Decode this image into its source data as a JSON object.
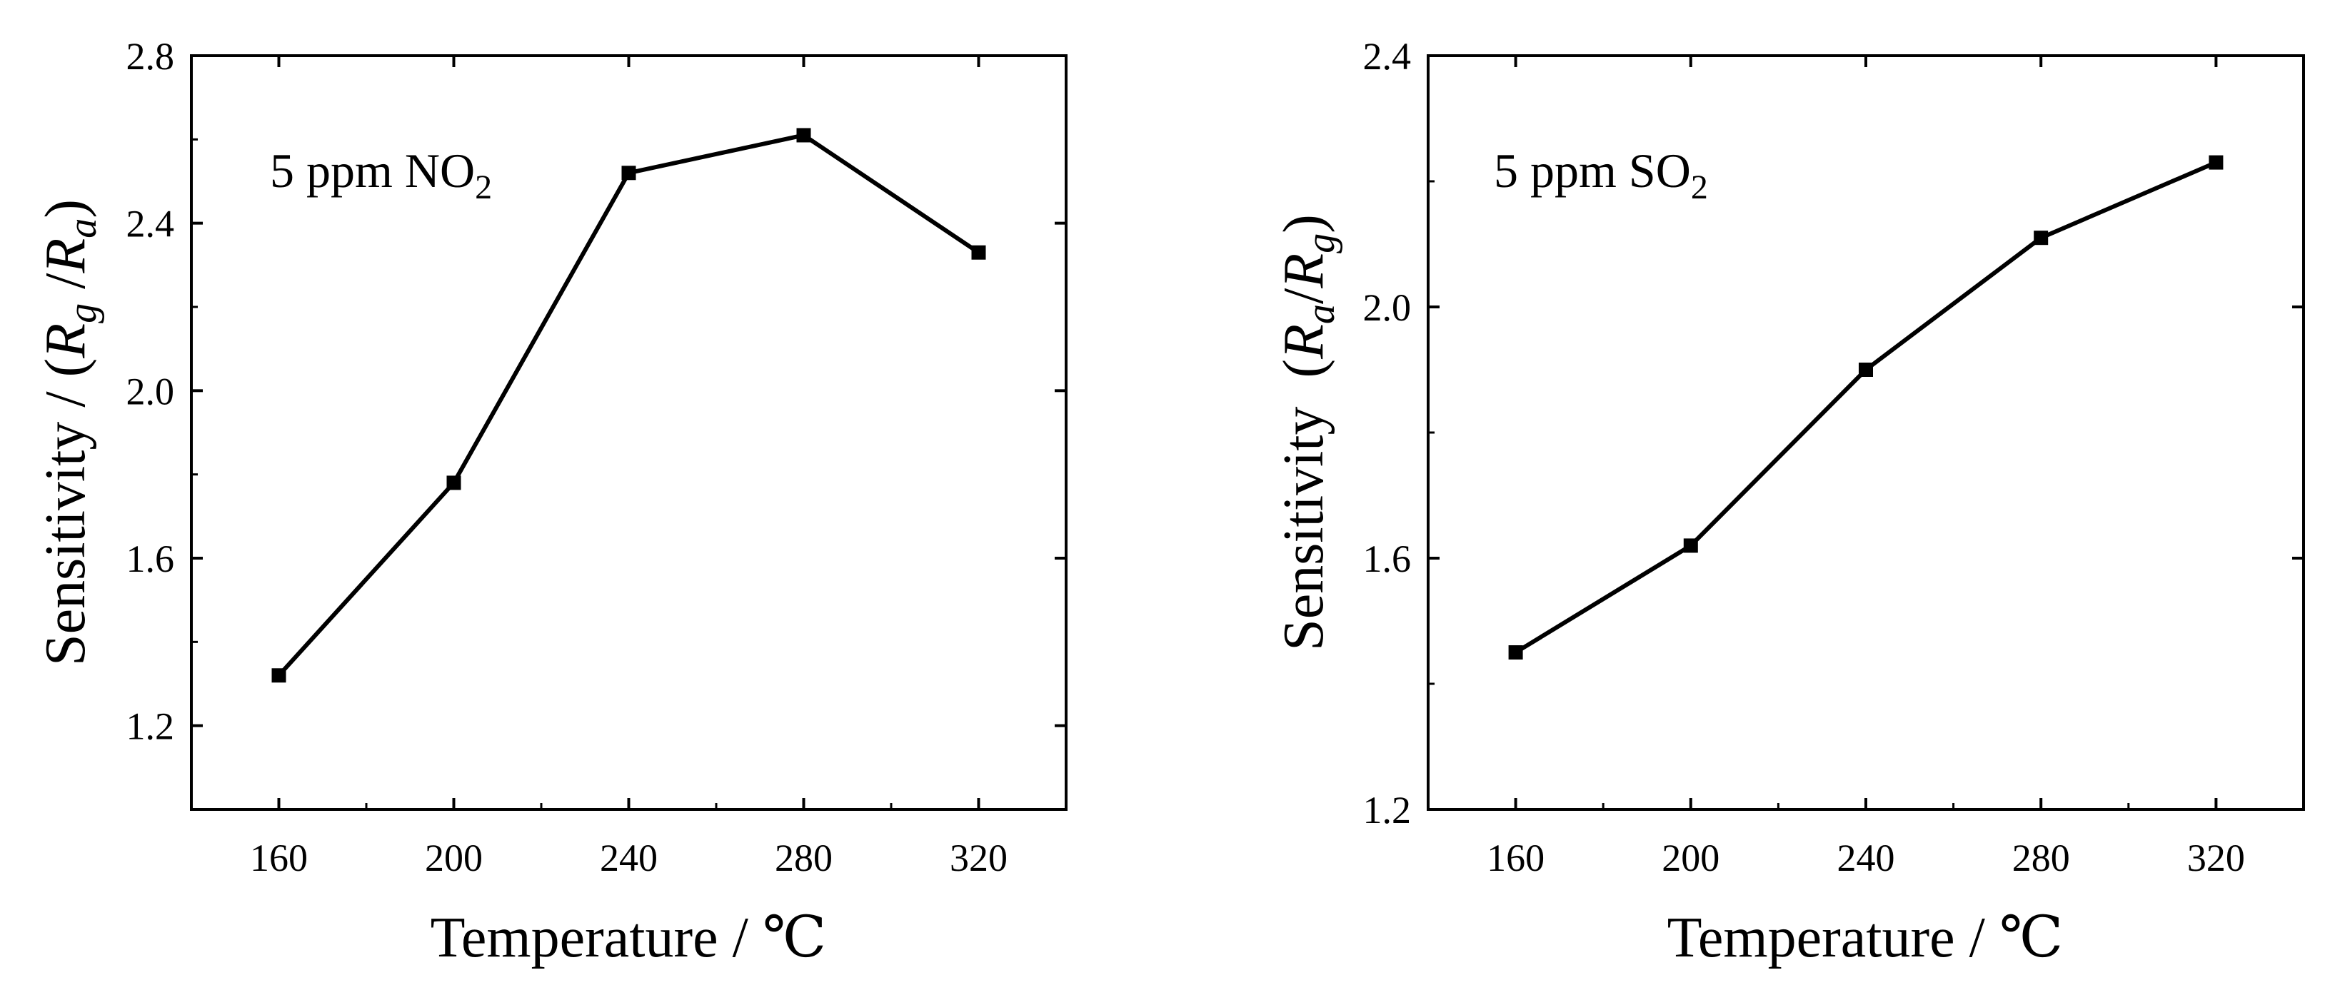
{
  "chart_data": [
    {
      "type": "line",
      "marker": "square",
      "annotation": {
        "text": "5 ppm NO",
        "subscript": "2"
      },
      "xlabel": "Temperature / ℃",
      "ylabel": {
        "prefix": "Sensitivity / (",
        "num_sym": "R",
        "num_sub": "g",
        "slash": " /",
        "den_sym": "R",
        "den_sub": "a",
        "suffix": ")"
      },
      "xlim": [
        140,
        340
      ],
      "ylim": [
        1.0,
        2.8
      ],
      "xticks": [
        160,
        200,
        240,
        280,
        320
      ],
      "xtick_labels": [
        "160",
        "200",
        "240",
        "280",
        "320"
      ],
      "yticks": [
        1.2,
        1.6,
        2.0,
        2.4,
        2.8
      ],
      "ytick_labels": [
        "1.2",
        "1.6",
        "2.0",
        "2.4",
        "2.8"
      ],
      "x": [
        160,
        200,
        240,
        280,
        320
      ],
      "y": [
        1.32,
        1.78,
        2.52,
        2.61,
        2.33
      ]
    },
    {
      "type": "line",
      "marker": "square",
      "annotation": {
        "text": "5 ppm SO",
        "subscript": "2"
      },
      "xlabel": "Temperature / ℃",
      "ylabel": {
        "prefix": "Sensitivity  (",
        "num_sym": "R",
        "num_sub": "a",
        "slash": "/",
        "den_sym": "R",
        "den_sub": "g",
        "suffix": ")"
      },
      "xlim": [
        140,
        340
      ],
      "ylim": [
        1.2,
        2.4
      ],
      "xticks": [
        160,
        200,
        240,
        280,
        320
      ],
      "xtick_labels": [
        "160",
        "200",
        "240",
        "280",
        "320"
      ],
      "yticks": [
        1.2,
        1.6,
        2.0,
        2.4
      ],
      "ytick_labels": [
        "1.2",
        "1.6",
        "2.0",
        "2.4"
      ],
      "x": [
        160,
        200,
        240,
        280,
        320
      ],
      "y": [
        1.45,
        1.62,
        1.9,
        2.11,
        2.23
      ]
    }
  ]
}
